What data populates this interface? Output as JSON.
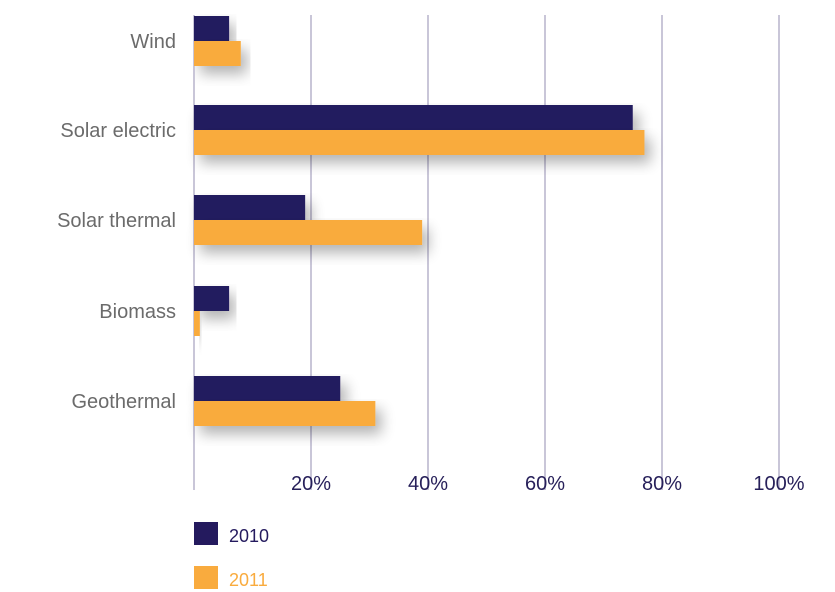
{
  "chart_data": {
    "type": "bar",
    "orientation": "horizontal",
    "categories": [
      "Wind",
      "Solar electric",
      "Solar thermal",
      "Biomass",
      "Geothermal"
    ],
    "series": [
      {
        "name": "2010",
        "color": "#241a5e",
        "values": [
          6,
          75,
          19,
          6,
          25
        ]
      },
      {
        "name": "2011",
        "color": "#f9ab3e",
        "values": [
          8,
          77,
          39,
          1,
          31
        ]
      }
    ],
    "x_ticks": [
      "20%",
      "40%",
      "60%",
      "80%",
      "100%"
    ],
    "xlim": [
      0,
      100
    ],
    "grid": true,
    "legend_placement": "bottom-left",
    "gridline_color": "#c9c6d8",
    "tick_label_color": "#27205a",
    "category_label_color": "#6b6b6b"
  }
}
